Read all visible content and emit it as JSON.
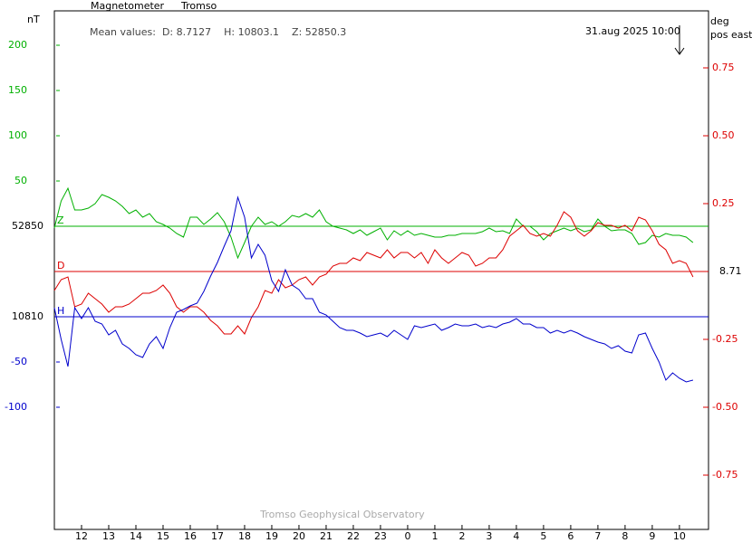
{
  "chart_data": {
    "type": "line",
    "title": "Magnetometer",
    "station": "Tromso",
    "mean_values": "Mean values:  D: 8.7127    H: 10803.1    Z: 52850.3",
    "timestamp": "31.aug 2025 10:00",
    "footer": "Tromso Geophysical Observatory",
    "y_label": "nT",
    "y2_label": [
      "deg",
      "pos east"
    ],
    "xlim": [
      11,
      35.07
    ],
    "xticks": [
      12,
      13,
      14,
      15,
      16,
      17,
      18,
      19,
      20,
      21,
      22,
      23,
      {
        "value": 24,
        "label": "0"
      },
      {
        "value": 25,
        "label": "1"
      },
      {
        "value": 26,
        "label": "2"
      },
      {
        "value": 27,
        "label": "3"
      },
      {
        "value": 28,
        "label": "4"
      },
      {
        "value": 29,
        "label": "5"
      },
      {
        "value": 30,
        "label": "6"
      },
      {
        "value": 31,
        "label": "7"
      },
      {
        "value": 32,
        "label": "8"
      },
      {
        "value": 33,
        "label": "9"
      },
      {
        "value": 34,
        "label": "10"
      }
    ],
    "x": [
      11,
      11.25,
      11.5,
      11.75,
      12,
      12.25,
      12.5,
      12.75,
      13,
      13.25,
      13.5,
      13.75,
      14,
      14.25,
      14.5,
      14.75,
      15,
      15.25,
      15.5,
      15.75,
      16,
      16.25,
      16.5,
      16.75,
      17,
      17.25,
      17.5,
      17.75,
      18,
      18.25,
      18.5,
      18.75,
      19,
      19.25,
      19.5,
      19.75,
      20,
      20.25,
      20.5,
      20.75,
      21,
      21.25,
      21.5,
      21.75,
      22,
      22.25,
      22.5,
      22.75,
      23,
      23.25,
      23.5,
      23.75,
      24,
      24.25,
      24.5,
      24.75,
      25,
      25.25,
      25.5,
      25.75,
      26,
      26.25,
      26.5,
      26.75,
      27,
      27.25,
      27.5,
      27.75,
      28,
      28.25,
      28.5,
      28.75,
      29,
      29.25,
      29.5,
      29.75,
      30,
      30.25,
      30.5,
      30.75,
      31,
      31.25,
      31.5,
      31.75,
      32,
      32.25,
      32.5,
      32.75,
      33,
      33.25,
      33.5,
      33.75,
      34,
      34.25,
      34.5
    ],
    "series": [
      {
        "name": "Z",
        "color": "#00b000",
        "axis": "y",
        "baseline": 52850,
        "ylim": [
          -335,
          238
        ],
        "yticks": [
          200,
          150,
          100,
          50
        ],
        "values": [
          -2,
          28,
          42,
          18,
          18,
          20,
          25,
          35,
          32,
          28,
          22,
          14,
          18,
          10,
          14,
          5,
          2,
          -2,
          -8,
          -12,
          10,
          10,
          2,
          8,
          15,
          5,
          -12,
          -35,
          -18,
          0,
          10,
          2,
          5,
          0,
          5,
          12,
          10,
          14,
          10,
          18,
          5,
          0,
          -2,
          -4,
          -8,
          -4,
          -10,
          -6,
          -2,
          -15,
          -5,
          -10,
          -5,
          -10,
          -8,
          -10,
          -12,
          -12,
          -10,
          -10,
          -8,
          -8,
          -8,
          -6,
          -2,
          -6,
          -5,
          -8,
          8,
          0,
          0,
          -6,
          -15,
          -8,
          -5,
          -2,
          -5,
          -2,
          -6,
          -4,
          8,
          0,
          -5,
          -4,
          -4,
          -8,
          -20,
          -18,
          -10,
          -12,
          -8,
          -10,
          -10,
          -12,
          -18
        ]
      },
      {
        "name": "D",
        "color": "#dd0000",
        "axis": "y2",
        "baseline": 8.71,
        "ylim": [
          -0.95,
          0.96
        ],
        "yticks": [
          0.75,
          {
            "value": 0.5,
            "label": "0.50"
          },
          0.25,
          -0.25,
          {
            "value": -0.5,
            "label": "-0.50"
          },
          -0.75
        ],
        "values": [
          -0.07,
          -0.03,
          -0.02,
          -0.13,
          -0.12,
          -0.08,
          -0.1,
          -0.12,
          -0.15,
          -0.13,
          -0.13,
          -0.12,
          -0.1,
          -0.08,
          -0.08,
          -0.07,
          -0.05,
          -0.08,
          -0.13,
          -0.15,
          -0.13,
          -0.13,
          -0.15,
          -0.18,
          -0.2,
          -0.23,
          -0.23,
          -0.2,
          -0.23,
          -0.17,
          -0.13,
          -0.07,
          -0.08,
          -0.03,
          -0.06,
          -0.05,
          -0.03,
          -0.02,
          -0.05,
          -0.02,
          -0.01,
          0.02,
          0.03,
          0.03,
          0.05,
          0.04,
          0.07,
          0.06,
          0.05,
          0.08,
          0.05,
          0.07,
          0.07,
          0.05,
          0.07,
          0.03,
          0.08,
          0.05,
          0.03,
          0.05,
          0.07,
          0.06,
          0.02,
          0.03,
          0.05,
          0.05,
          0.08,
          0.13,
          0.15,
          0.17,
          0.14,
          0.13,
          0.14,
          0.13,
          0.17,
          0.22,
          0.2,
          0.15,
          0.13,
          0.15,
          0.18,
          0.17,
          0.17,
          0.16,
          0.17,
          0.15,
          0.2,
          0.19,
          0.15,
          0.1,
          0.08,
          0.03,
          0.04,
          0.03,
          -0.02
        ]
      },
      {
        "name": "H",
        "color": "#0000cc",
        "axis": "y",
        "baseline": 10810,
        "ylim": [
          -235,
          338
        ],
        "yticks": [
          -50,
          -100
        ],
        "values": [
          10,
          -25,
          -55,
          10,
          -2,
          10,
          -5,
          -8,
          -20,
          -15,
          -30,
          -35,
          -42,
          -45,
          -30,
          -22,
          -35,
          -12,
          5,
          8,
          12,
          15,
          28,
          45,
          60,
          78,
          95,
          132,
          110,
          65,
          80,
          68,
          40,
          28,
          52,
          35,
          30,
          20,
          20,
          5,
          2,
          -5,
          -12,
          -15,
          -15,
          -18,
          -22,
          -20,
          -18,
          -22,
          -15,
          -20,
          -25,
          -10,
          -12,
          -10,
          -8,
          -15,
          -12,
          -8,
          -10,
          -10,
          -8,
          -12,
          -10,
          -12,
          -8,
          -6,
          -2,
          -8,
          -8,
          -12,
          -12,
          -18,
          -15,
          -18,
          -15,
          -18,
          -22,
          -25,
          -28,
          -30,
          -35,
          -32,
          -38,
          -40,
          -20,
          -18,
          -35,
          -50,
          -70,
          -62,
          -68,
          -72,
          -70
        ]
      }
    ]
  }
}
